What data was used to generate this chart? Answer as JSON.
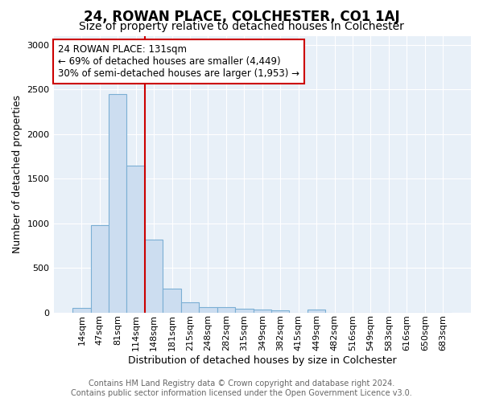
{
  "title": "24, ROWAN PLACE, COLCHESTER, CO1 1AJ",
  "subtitle": "Size of property relative to detached houses in Colchester",
  "xlabel": "Distribution of detached houses by size in Colchester",
  "ylabel": "Number of detached properties",
  "footer_line1": "Contains HM Land Registry data © Crown copyright and database right 2024.",
  "footer_line2": "Contains public sector information licensed under the Open Government Licence v3.0.",
  "annotation_title": "24 ROWAN PLACE: 131sqm",
  "annotation_line2": "← 69% of detached houses are smaller (4,449)",
  "annotation_line3": "30% of semi-detached houses are larger (1,953) →",
  "categories": [
    "14sqm",
    "47sqm",
    "81sqm",
    "114sqm",
    "148sqm",
    "181sqm",
    "215sqm",
    "248sqm",
    "282sqm",
    "315sqm",
    "349sqm",
    "382sqm",
    "415sqm",
    "449sqm",
    "482sqm",
    "516sqm",
    "549sqm",
    "583sqm",
    "616sqm",
    "650sqm",
    "683sqm"
  ],
  "values": [
    50,
    980,
    2450,
    1650,
    820,
    265,
    115,
    60,
    55,
    40,
    30,
    22,
    0,
    28,
    0,
    0,
    0,
    0,
    0,
    0,
    0
  ],
  "bar_color": "#ccddf0",
  "bar_edge_color": "#7bafd4",
  "vline_x": 3.5,
  "vline_color": "#cc0000",
  "annotation_box_color": "#ffffff",
  "annotation_box_edge_color": "#cc0000",
  "ylim": [
    0,
    3100
  ],
  "yticks": [
    0,
    500,
    1000,
    1500,
    2000,
    2500,
    3000
  ],
  "fig_background_color": "#ffffff",
  "plot_background": "#e8f0f8",
  "grid_color": "#ffffff",
  "title_fontsize": 12,
  "subtitle_fontsize": 10,
  "label_fontsize": 9,
  "tick_fontsize": 8,
  "footer_fontsize": 7,
  "annotation_fontsize": 8.5
}
